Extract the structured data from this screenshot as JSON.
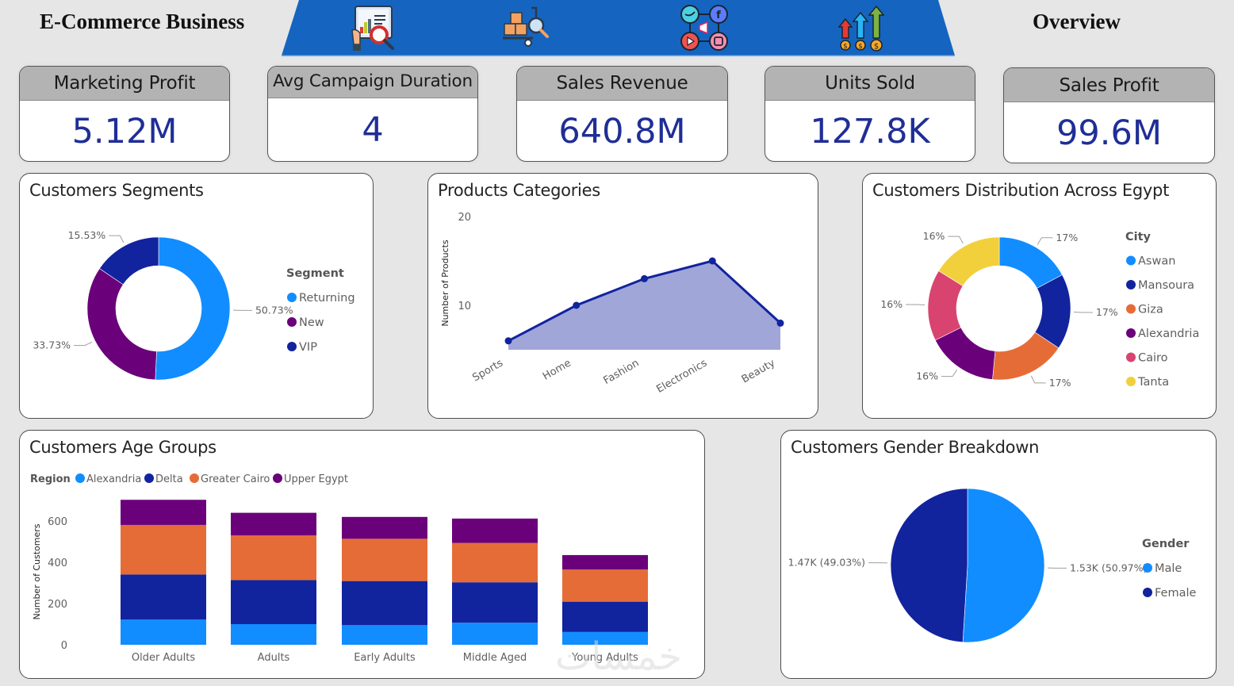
{
  "header": {
    "left_title": "E-Commerce Business",
    "right_title": "Overview",
    "banner_color": "#1565C0",
    "nav_icons": [
      {
        "name": "report-analysis-icon",
        "label": "Report analysis"
      },
      {
        "name": "product-inspection-icon",
        "label": "Products"
      },
      {
        "name": "social-marketing-icon",
        "label": "Marketing"
      },
      {
        "name": "sales-growth-icon",
        "label": "Sales"
      }
    ]
  },
  "kpis": [
    {
      "label": "Marketing Profit",
      "value": "5.12M"
    },
    {
      "label": "Avg Campaign Duration",
      "value": "4"
    },
    {
      "label": "Sales Revenue",
      "value": "640.8M"
    },
    {
      "label": "Units Sold",
      "value": "127.8K"
    },
    {
      "label": "Sales Profit",
      "value": "99.6M"
    }
  ],
  "colors": {
    "light_blue": "#118DFF",
    "dark_blue": "#12239E",
    "orange": "#E66C37",
    "purple": "#6B007B",
    "pink": "#E044A7",
    "cairo_pink": "#D9436F",
    "yellow": "#F2D03C",
    "area_fill": "#A0A6D8",
    "kpi_value": "#1F2E96"
  },
  "chart_data": [
    {
      "id": "segments",
      "type": "pie",
      "donut": true,
      "title": "Customers Segments",
      "legend_title": "Segment",
      "legend_position": "right",
      "slices": [
        {
          "label": "Returning",
          "value": 50.73,
          "display": "50.73%",
          "color": "#118DFF"
        },
        {
          "label": "New",
          "value": 33.73,
          "display": "33.73%",
          "color": "#6B007B"
        },
        {
          "label": "VIP",
          "value": 15.53,
          "display": "15.53%",
          "color": "#12239E"
        }
      ]
    },
    {
      "id": "products",
      "type": "area",
      "title": "Products Categories",
      "xlabel": "",
      "ylabel": "Number of Products",
      "categories": [
        "Sports",
        "Home",
        "Fashion",
        "Electronics",
        "Beauty"
      ],
      "values": [
        6,
        10,
        13,
        15,
        8
      ],
      "ylim": [
        5,
        20
      ],
      "yticks": [
        10,
        20
      ],
      "grid": false
    },
    {
      "id": "cities",
      "type": "pie",
      "donut": true,
      "title": "Customers Distribution Across Egypt",
      "legend_title": "City",
      "legend_position": "right",
      "slices": [
        {
          "label": "Aswan",
          "value": 17,
          "display": "17%",
          "color": "#118DFF"
        },
        {
          "label": "Mansoura",
          "value": 17,
          "display": "17%",
          "color": "#12239E"
        },
        {
          "label": "Giza",
          "value": 17,
          "display": "17%",
          "color": "#E66C37"
        },
        {
          "label": "Alexandria",
          "value": 16,
          "display": "16%",
          "color": "#6B007B"
        },
        {
          "label": "Cairo",
          "value": 16,
          "display": "16%",
          "color": "#D9436F"
        },
        {
          "label": "Tanta",
          "value": 16,
          "display": "16%",
          "color": "#F2D03C"
        }
      ]
    },
    {
      "id": "age_groups",
      "type": "bar",
      "stacked": true,
      "title": "Customers Age Groups",
      "legend_title": "Region",
      "legend_position": "top-left",
      "xlabel": "",
      "ylabel": "Number of Customers",
      "categories": [
        "Older Adults",
        "Adults",
        "Early Adults",
        "Middle Aged",
        "Young Adults"
      ],
      "series": [
        {
          "name": "Alexandria",
          "color": "#118DFF",
          "values": [
            122,
            100,
            95,
            107,
            62
          ]
        },
        {
          "name": "Delta",
          "color": "#12239E",
          "values": [
            219,
            214,
            214,
            196,
            147
          ]
        },
        {
          "name": "Greater Cairo",
          "color": "#E66C37",
          "values": [
            240,
            216,
            205,
            191,
            156
          ]
        },
        {
          "name": "Upper Egypt",
          "color": "#6B007B",
          "values": [
            122,
            110,
            106,
            118,
            70
          ]
        }
      ],
      "ylim": [
        0,
        720
      ],
      "yticks": [
        0,
        200,
        400,
        600
      ],
      "grid": false
    },
    {
      "id": "gender",
      "type": "pie",
      "donut": false,
      "title": "Customers Gender Breakdown",
      "legend_title": "Gender",
      "legend_position": "right",
      "slices": [
        {
          "label": "Male",
          "value": 50.97,
          "display": "1.53K (50.97%)",
          "color": "#118DFF"
        },
        {
          "label": "Female",
          "value": 49.03,
          "display": "1.47K (49.03%)",
          "color": "#12239E"
        }
      ]
    }
  ]
}
